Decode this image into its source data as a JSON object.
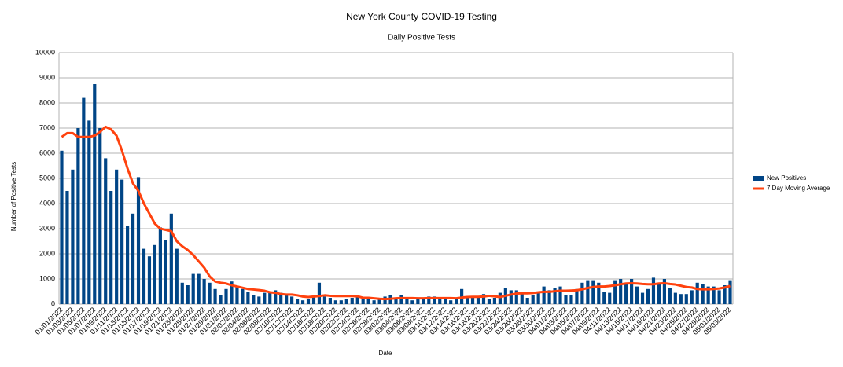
{
  "chart_data": {
    "type": "bar",
    "title": "New York County COVID-19 Testing",
    "subtitle": "Daily Positive Tests",
    "x_label": "Date",
    "y_label": "Number of Positive Tests",
    "grid": true,
    "legend": "right",
    "ylim": [
      0,
      10000
    ],
    "yticks": [
      0,
      1000,
      2000,
      3000,
      4000,
      5000,
      6000,
      7000,
      8000,
      9000,
      10000
    ],
    "categories": [
      "01/01/2022",
      null,
      "01/03/2022",
      null,
      "01/05/2022",
      null,
      "01/07/2022",
      null,
      "01/09/2022",
      null,
      "01/11/2022",
      null,
      "01/13/2022",
      null,
      "01/15/2022",
      null,
      "01/17/2022",
      null,
      "01/19/2022",
      null,
      "01/21/2022",
      null,
      "01/23/2022",
      null,
      "01/25/2022",
      null,
      "01/27/2022",
      null,
      "01/29/2022",
      null,
      "01/31/2022",
      null,
      "02/02/2022",
      null,
      "02/04/2022",
      null,
      "02/06/2022",
      null,
      "02/08/2022",
      null,
      "02/10/2022",
      null,
      "02/12/2022",
      null,
      "02/14/2022",
      null,
      "02/16/2022",
      null,
      "02/18/2022",
      null,
      "02/20/2022",
      null,
      "02/22/2022",
      null,
      "02/24/2022",
      null,
      "02/26/2022",
      null,
      "02/28/2022",
      null,
      "03/02/2022",
      null,
      "03/04/2022",
      null,
      "03/06/2022",
      null,
      "03/08/2022",
      null,
      "03/10/2022",
      null,
      "03/12/2022",
      null,
      "03/14/2022",
      null,
      "03/16/2022",
      null,
      "03/18/2022",
      null,
      "03/20/2022",
      null,
      "03/22/2022",
      null,
      "03/24/2022",
      null,
      "03/26/2022",
      null,
      "03/28/2022",
      null,
      "03/30/2022",
      null,
      "04/01/2022",
      null,
      "04/03/2022",
      null,
      "04/05/2022",
      null,
      "04/07/2022",
      null,
      "04/09/2022",
      null,
      "04/11/2022",
      null,
      "04/13/2022",
      null,
      "04/15/2022",
      null,
      "04/17/2022",
      null,
      "04/19/2022",
      null,
      "04/21/2022",
      null,
      "04/23/2022",
      null,
      "04/25/2022",
      null,
      "04/27/2022",
      null,
      "04/29/2022",
      null,
      "05/01/2022",
      null,
      "05/03/2022"
    ],
    "series": [
      {
        "name": "New Positives",
        "type": "bar",
        "color": "#004586",
        "values": [
          6100,
          4500,
          5350,
          7000,
          8200,
          7300,
          8750,
          7000,
          5800,
          4500,
          5350,
          4950,
          3100,
          3600,
          5050,
          2200,
          1900,
          2350,
          3050,
          2550,
          3600,
          2200,
          850,
          750,
          1200,
          1200,
          1000,
          850,
          600,
          350,
          600,
          900,
          700,
          600,
          500,
          350,
          300,
          450,
          450,
          550,
          450,
          400,
          300,
          200,
          150,
          200,
          300,
          850,
          300,
          250,
          150,
          150,
          200,
          250,
          300,
          200,
          200,
          150,
          250,
          300,
          350,
          250,
          350,
          200,
          150,
          250,
          250,
          300,
          300,
          250,
          250,
          150,
          250,
          600,
          300,
          300,
          300,
          400,
          200,
          250,
          450,
          650,
          550,
          550,
          400,
          250,
          350,
          500,
          700,
          550,
          650,
          700,
          350,
          350,
          600,
          850,
          950,
          950,
          850,
          500,
          450,
          950,
          1000,
          800,
          1000,
          700,
          450,
          600,
          1050,
          800,
          1000,
          650,
          450,
          400,
          400,
          550,
          850,
          800,
          700,
          700,
          550,
          750,
          950
        ]
      },
      {
        "name": "7 Day Moving Average",
        "type": "line",
        "color": "#ff420e",
        "values": [
          6650,
          6800,
          6800,
          6650,
          6650,
          6650,
          6700,
          6850,
          7050,
          6950,
          6700,
          6100,
          5400,
          4800,
          4500,
          4000,
          3600,
          3200,
          3000,
          2950,
          2900,
          2500,
          2300,
          2150,
          1950,
          1700,
          1450,
          1100,
          900,
          850,
          820,
          750,
          700,
          650,
          600,
          580,
          560,
          530,
          470,
          450,
          400,
          380,
          380,
          350,
          300,
          280,
          300,
          320,
          350,
          330,
          320,
          320,
          320,
          320,
          310,
          250,
          250,
          230,
          210,
          200,
          210,
          230,
          240,
          240,
          240,
          230,
          230,
          240,
          240,
          240,
          240,
          240,
          230,
          260,
          280,
          290,
          290,
          300,
          330,
          310,
          280,
          330,
          380,
          420,
          430,
          430,
          440,
          470,
          490,
          490,
          510,
          530,
          530,
          540,
          550,
          590,
          640,
          680,
          700,
          700,
          720,
          750,
          790,
          820,
          830,
          820,
          800,
          790,
          790,
          820,
          830,
          800,
          780,
          730,
          680,
          660,
          600,
          590,
          590,
          600,
          620,
          660,
          720
        ]
      }
    ]
  }
}
